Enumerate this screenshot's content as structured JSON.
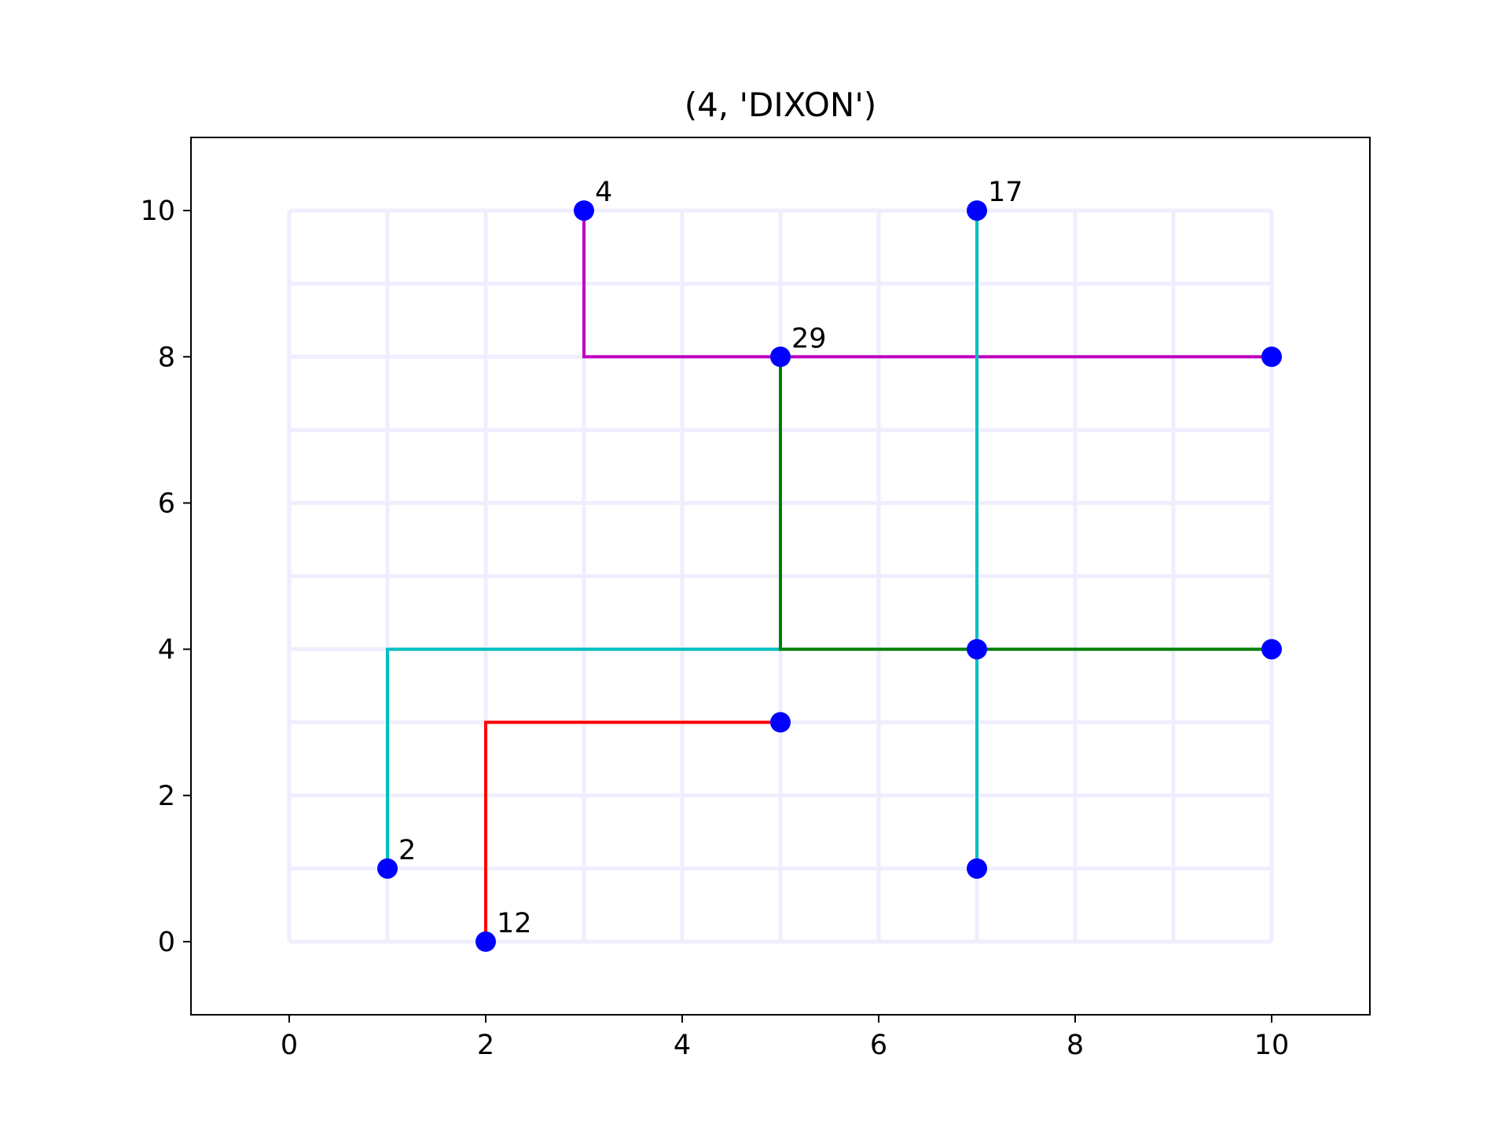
{
  "chart_data": {
    "type": "line",
    "title": "(4, 'DIXON')",
    "xlabel": "",
    "ylabel": "",
    "xlim": [
      -1,
      11
    ],
    "ylim": [
      -1,
      11
    ],
    "xticks": [
      0,
      2,
      4,
      6,
      8,
      10
    ],
    "yticks": [
      0,
      2,
      4,
      6,
      8,
      10
    ],
    "grid": {
      "x": [
        0,
        1,
        2,
        3,
        4,
        5,
        6,
        7,
        8,
        9,
        10
      ],
      "y": [
        0,
        1,
        2,
        3,
        4,
        5,
        6,
        7,
        8,
        9,
        10
      ],
      "color": "#eeeeff"
    },
    "series": [
      {
        "name": "magenta-path",
        "color": "#bf00bf",
        "points": [
          [
            3,
            10
          ],
          [
            3,
            8
          ],
          [
            10,
            8
          ]
        ]
      },
      {
        "name": "cyan-path-left",
        "color": "#00bfbf",
        "points": [
          [
            1,
            1
          ],
          [
            1,
            4
          ],
          [
            5,
            4
          ]
        ]
      },
      {
        "name": "cyan-path-vertical",
        "color": "#00bfbf",
        "points": [
          [
            7,
            10
          ],
          [
            7,
            1
          ]
        ]
      },
      {
        "name": "green-path",
        "color": "#008000",
        "points": [
          [
            5,
            8
          ],
          [
            5,
            4
          ],
          [
            10,
            4
          ]
        ]
      },
      {
        "name": "red-path",
        "color": "#ff0000",
        "points": [
          [
            2,
            0
          ],
          [
            2,
            3
          ],
          [
            5,
            3
          ]
        ]
      }
    ],
    "points": [
      {
        "x": 3,
        "y": 10,
        "label": "4"
      },
      {
        "x": 7,
        "y": 10,
        "label": "17"
      },
      {
        "x": 5,
        "y": 8,
        "label": "29"
      },
      {
        "x": 10,
        "y": 8,
        "label": ""
      },
      {
        "x": 7,
        "y": 4,
        "label": ""
      },
      {
        "x": 10,
        "y": 4,
        "label": ""
      },
      {
        "x": 5,
        "y": 3,
        "label": ""
      },
      {
        "x": 1,
        "y": 1,
        "label": "2"
      },
      {
        "x": 7,
        "y": 1,
        "label": ""
      },
      {
        "x": 2,
        "y": 0,
        "label": "12"
      }
    ],
    "point_color": "#0000ff"
  }
}
